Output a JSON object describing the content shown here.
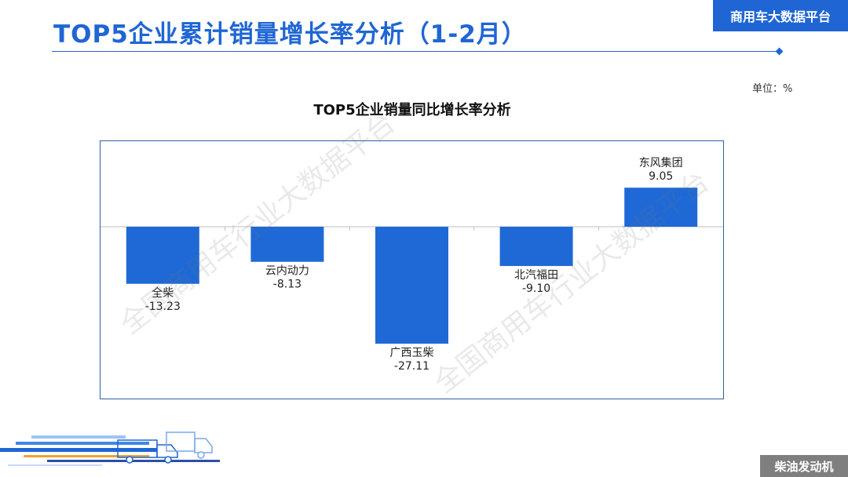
{
  "header": {
    "title": "TOP5企业累计销量增长率分析（1-2月）",
    "brand": "商用车大数据平台"
  },
  "unit": "单位：%",
  "footer": {
    "label": "柴油发动机"
  },
  "watermark": {
    "text": "全国商用车行业大数据平台"
  },
  "colors": {
    "accent": "#1f66d4",
    "bar": "#1f69d6",
    "footer": "#7f7f7f"
  },
  "chart_data": {
    "type": "bar",
    "title": "TOP5企业销量同比增长率分析",
    "categories": [
      "全柴",
      "云内动力",
      "广西玉柴",
      "北汽福田",
      "东风集团"
    ],
    "values": [
      -13.23,
      -8.13,
      -27.11,
      -9.1,
      9.05
    ],
    "value_labels": [
      "-13.23",
      "-8.13",
      "-27.11",
      "-9.10",
      "9.05"
    ],
    "ylim": [
      -40,
      20
    ],
    "grid": false,
    "legend": "none"
  }
}
